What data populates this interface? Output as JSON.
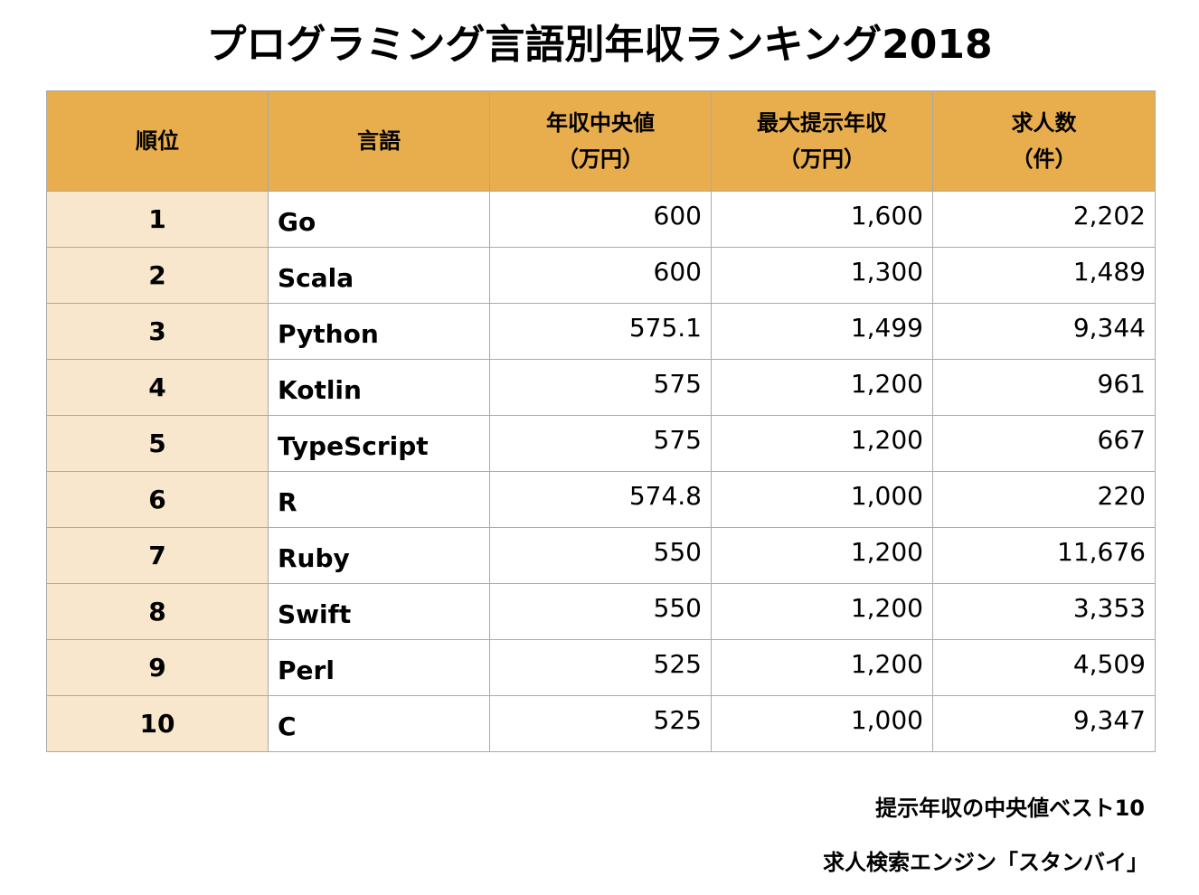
{
  "title": "プログラミング言語別年収ランキング2018",
  "chart_data": {
    "type": "table",
    "title": "プログラミング言語別年収ランキング2018",
    "columns": [
      {
        "line1": "順位",
        "line2": ""
      },
      {
        "line1": "言語",
        "line2": ""
      },
      {
        "line1": "年収中央値",
        "line2": "（万円）"
      },
      {
        "line1": "最大提示年収",
        "line2": "（万円）"
      },
      {
        "line1": "求人数",
        "line2": "（件）"
      }
    ],
    "rows": [
      {
        "rank": "1",
        "language": "Go",
        "median_salary": "600",
        "max_salary": "1,600",
        "jobs": "2,202"
      },
      {
        "rank": "2",
        "language": "Scala",
        "median_salary": "600",
        "max_salary": "1,300",
        "jobs": "1,489"
      },
      {
        "rank": "3",
        "language": "Python",
        "median_salary": "575.1",
        "max_salary": "1,499",
        "jobs": "9,344"
      },
      {
        "rank": "4",
        "language": "Kotlin",
        "median_salary": "575",
        "max_salary": "1,200",
        "jobs": "961"
      },
      {
        "rank": "5",
        "language": "TypeScript",
        "median_salary": "575",
        "max_salary": "1,200",
        "jobs": "667"
      },
      {
        "rank": "6",
        "language": "R",
        "median_salary": "574.8",
        "max_salary": "1,000",
        "jobs": "220"
      },
      {
        "rank": "7",
        "language": "Ruby",
        "median_salary": "550",
        "max_salary": "1,200",
        "jobs": "11,676"
      },
      {
        "rank": "8",
        "language": "Swift",
        "median_salary": "550",
        "max_salary": "1,200",
        "jobs": "3,353"
      },
      {
        "rank": "9",
        "language": "Perl",
        "median_salary": "525",
        "max_salary": "1,200",
        "jobs": "4,509"
      },
      {
        "rank": "10",
        "language": "C",
        "median_salary": "525",
        "max_salary": "1,000",
        "jobs": "9,347"
      }
    ]
  },
  "footnotes": {
    "note1": "提示年収の中央値ベスト10",
    "note2": "求人検索エンジン「スタンバイ」"
  },
  "colors": {
    "header_bg": "#e8ad4c",
    "rank_bg": "#f8e7cc",
    "border": "#aaaaaa"
  }
}
